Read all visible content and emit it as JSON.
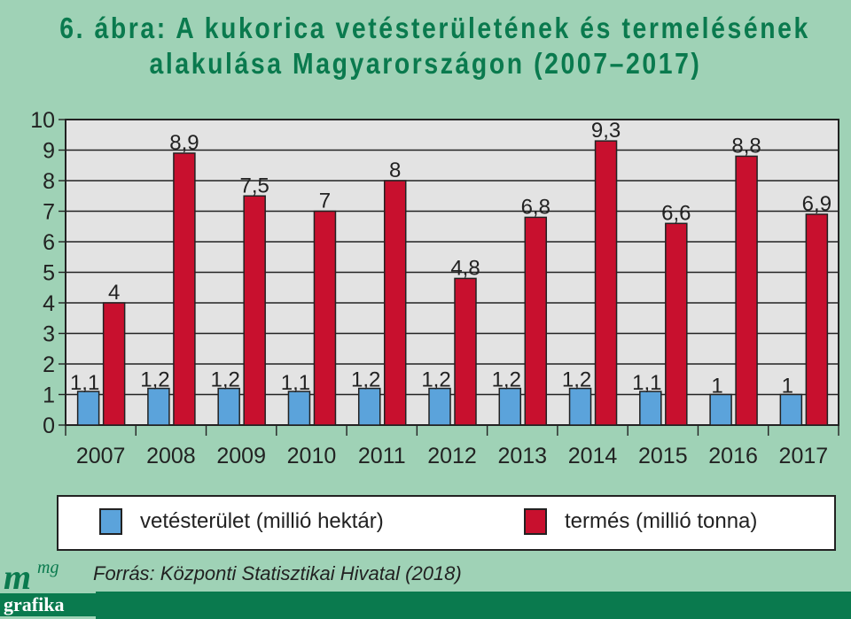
{
  "title": {
    "line1": "6. ábra: A kukorica vetésterületének és termelésének",
    "line2": "alakulása Magyarországon (2007–2017)"
  },
  "chart_data": {
    "type": "bar",
    "categories": [
      "2007",
      "2008",
      "2009",
      "2010",
      "2011",
      "2012",
      "2013",
      "2014",
      "2015",
      "2016",
      "2017"
    ],
    "series": [
      {
        "name": "vetésterület (millió hektár)",
        "color": "#5ba3db",
        "values": [
          1.1,
          1.2,
          1.2,
          1.1,
          1.2,
          1.2,
          1.2,
          1.2,
          1.1,
          1,
          1
        ],
        "labels": [
          "1,1",
          "1,2",
          "1,2",
          "1,1",
          "1,2",
          "1,2",
          "1,2",
          "1,2",
          "1,1",
          "1",
          "1"
        ]
      },
      {
        "name": "termés (millió tonna)",
        "color": "#c8102e",
        "values": [
          4,
          8.9,
          7.5,
          7,
          8,
          4.8,
          6.8,
          9.3,
          6.6,
          8.8,
          6.9
        ],
        "labels": [
          "4",
          "8,9",
          "7,5",
          "7",
          "8",
          "4,8",
          "6,8",
          "9,3",
          "6,6",
          "8,8",
          "6,9"
        ]
      }
    ],
    "ylim": [
      0,
      10
    ],
    "yticks": [
      "0",
      "1",
      "2",
      "3",
      "4",
      "5",
      "6",
      "7",
      "8",
      "9",
      "10"
    ],
    "grid": true
  },
  "legend": {
    "area_label": "vetésterület (millió hektár)",
    "yield_label": "termés (millió tonna)",
    "area_color": "#5ba3db",
    "yield_color": "#c8102e"
  },
  "source": "Forrás: Központi Statisztikai Hivatal (2018)",
  "logo": {
    "m": "m",
    "mg": "mg",
    "grafika": "grafika"
  }
}
